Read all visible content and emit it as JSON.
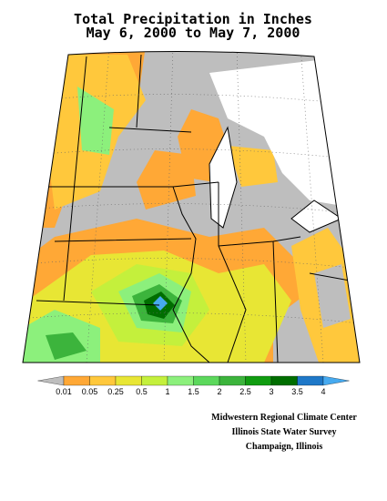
{
  "header": {
    "title": "Total Precipitation in Inches",
    "subtitle": "May 6, 2000 to May 7, 2000"
  },
  "legend": {
    "thresholds": [
      0.01,
      0.05,
      0.25,
      0.5,
      1,
      1.5,
      2,
      2.5,
      3,
      3.5,
      4
    ],
    "colors": [
      "#bebebe",
      "#ffa836",
      "#ffc83c",
      "#e8e634",
      "#c4f03c",
      "#8cf07c",
      "#5cd85c",
      "#3cb43c",
      "#109c10",
      "#006e00",
      "#1e78c8",
      "#46aaf0"
    ]
  },
  "credits": [
    "Midwestern Regional Climate Center",
    "Illinois State Water Survey",
    "Champaign, Illinois"
  ]
}
